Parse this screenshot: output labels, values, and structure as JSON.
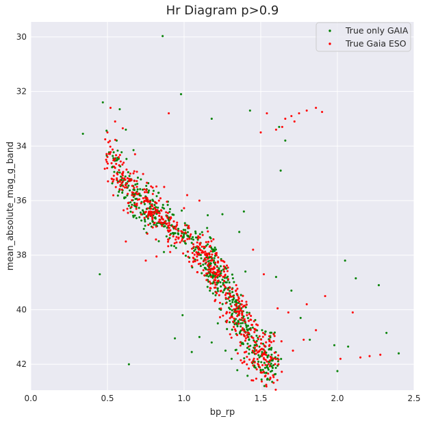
{
  "chart_data": {
    "type": "scatter",
    "title": "Hr Diagram p>0.9",
    "xlabel": "bp_rp",
    "ylabel": "mean_absolute_mag_g_band",
    "xlim": [
      0.0,
      2.5
    ],
    "ylim": [
      42.95,
      29.45
    ],
    "y_inverted": true,
    "grid": true,
    "legend_position": "top-right",
    "xticks": [
      "0.0",
      "0.5",
      "1.0",
      "1.5",
      "2.0",
      "2.5"
    ],
    "yticks": [
      "30",
      "32",
      "34",
      "36",
      "38",
      "40",
      "42"
    ],
    "series": [
      {
        "name": "True only GAIA",
        "color": "#008000",
        "points": [
          [
            0.86,
            29.97
          ],
          [
            0.98,
            32.1
          ],
          [
            1.18,
            33.0
          ],
          [
            1.43,
            32.7
          ],
          [
            1.62,
            33.3
          ],
          [
            1.66,
            33.8
          ],
          [
            1.63,
            34.9
          ],
          [
            0.34,
            33.55
          ],
          [
            0.47,
            32.4
          ],
          [
            0.45,
            38.7
          ],
          [
            1.25,
            36.5
          ],
          [
            1.39,
            36.4
          ],
          [
            1.36,
            37.15
          ],
          [
            0.88,
            36.75
          ],
          [
            2.05,
            38.2
          ],
          [
            2.12,
            38.85
          ],
          [
            2.32,
            40.85
          ],
          [
            2.27,
            39.1
          ],
          [
            2.07,
            41.35
          ],
          [
            1.98,
            41.3
          ],
          [
            2.4,
            41.6
          ],
          [
            0.99,
            40.2
          ],
          [
            0.94,
            41.05
          ],
          [
            0.64,
            42.0
          ],
          [
            2.0,
            42.25
          ],
          [
            1.05,
            41.55
          ],
          [
            1.1,
            41.0
          ],
          [
            1.18,
            41.2
          ],
          [
            1.22,
            40.5
          ],
          [
            1.6,
            38.8
          ],
          [
            1.7,
            39.3
          ],
          [
            1.76,
            40.3
          ],
          [
            1.82,
            41.1
          ],
          [
            0.56,
            33.8
          ],
          [
            0.62,
            33.4
          ],
          [
            0.58,
            32.65
          ],
          [
            0.67,
            34.15
          ],
          [
            0.73,
            35.6
          ],
          [
            0.78,
            36.0
          ],
          [
            0.83,
            36.4
          ],
          [
            0.92,
            36.9
          ],
          [
            1.0,
            37.2
          ],
          [
            1.05,
            37.55
          ],
          [
            1.1,
            37.75
          ],
          [
            1.15,
            38.0
          ],
          [
            1.2,
            38.3
          ],
          [
            1.25,
            38.9
          ],
          [
            1.3,
            39.4
          ],
          [
            1.33,
            40.0
          ],
          [
            1.37,
            40.5
          ],
          [
            1.42,
            41.0
          ],
          [
            1.46,
            41.3
          ],
          [
            1.5,
            41.7
          ],
          [
            1.53,
            40.8
          ],
          [
            1.57,
            41.4
          ],
          [
            1.31,
            41.8
          ],
          [
            1.27,
            41.5
          ],
          [
            1.24,
            40.0
          ],
          [
            1.29,
            39.2
          ],
          [
            1.4,
            38.6
          ]
        ]
      },
      {
        "name": "True Gaia ESO",
        "color": "#ff0000",
        "points": [
          [
            0.52,
            32.6
          ],
          [
            0.55,
            33.1
          ],
          [
            0.6,
            33.35
          ],
          [
            0.68,
            34.3
          ],
          [
            0.9,
            32.8
          ],
          [
            1.5,
            33.5
          ],
          [
            1.54,
            32.8
          ],
          [
            1.64,
            33.3
          ],
          [
            1.7,
            32.9
          ],
          [
            1.75,
            32.8
          ],
          [
            1.8,
            32.7
          ],
          [
            1.86,
            32.6
          ],
          [
            1.9,
            32.75
          ],
          [
            1.72,
            33.1
          ],
          [
            1.6,
            33.4
          ],
          [
            1.66,
            33.0
          ],
          [
            0.5,
            33.5
          ],
          [
            0.62,
            37.5
          ],
          [
            0.75,
            38.2
          ],
          [
            0.82,
            38.05
          ],
          [
            1.05,
            38.4
          ],
          [
            1.45,
            37.8
          ],
          [
            1.52,
            38.7
          ],
          [
            1.68,
            40.1
          ],
          [
            1.8,
            39.8
          ],
          [
            1.86,
            40.75
          ],
          [
            1.92,
            39.5
          ],
          [
            2.02,
            41.8
          ],
          [
            2.15,
            41.75
          ],
          [
            2.21,
            41.7
          ],
          [
            2.28,
            41.65
          ],
          [
            1.61,
            39.95
          ],
          [
            1.71,
            41.5
          ],
          [
            1.78,
            41.1
          ],
          [
            2.1,
            40.1
          ],
          [
            0.87,
            35.5
          ],
          [
            1.02,
            35.8
          ],
          [
            1.1,
            36.0
          ],
          [
            1.38,
            41.95
          ],
          [
            1.5,
            42.3
          ],
          [
            1.47,
            41.5
          ],
          [
            1.35,
            41.6
          ],
          [
            1.3,
            40.9
          ],
          [
            1.28,
            40.4
          ],
          [
            1.41,
            40.2
          ],
          [
            1.36,
            39.7
          ],
          [
            1.34,
            39.1
          ],
          [
            1.22,
            38.75
          ],
          [
            1.18,
            38.2
          ],
          [
            1.12,
            37.85
          ],
          [
            1.06,
            37.6
          ],
          [
            0.98,
            37.3
          ],
          [
            0.9,
            37.0
          ],
          [
            0.84,
            36.7
          ],
          [
            0.78,
            36.4
          ],
          [
            0.72,
            36.1
          ],
          [
            0.66,
            35.8
          ],
          [
            0.6,
            35.3
          ],
          [
            0.55,
            34.8
          ],
          [
            0.5,
            34.4
          ]
        ]
      }
    ],
    "main_sequence_centerline": [
      [
        0.48,
        34.2
      ],
      [
        0.55,
        34.7
      ],
      [
        0.62,
        35.4
      ],
      [
        0.7,
        35.9
      ],
      [
        0.8,
        36.4
      ],
      [
        0.9,
        36.9
      ],
      [
        1.0,
        37.35
      ],
      [
        1.1,
        37.9
      ],
      [
        1.2,
        38.5
      ],
      [
        1.3,
        39.35
      ],
      [
        1.38,
        40.2
      ],
      [
        1.45,
        41.0
      ],
      [
        1.52,
        41.55
      ]
    ]
  }
}
